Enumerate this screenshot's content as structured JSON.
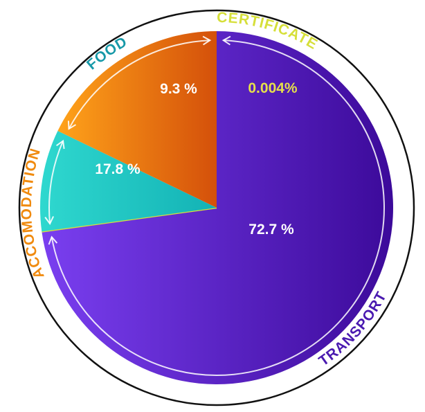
{
  "chart_data": {
    "type": "pie",
    "title": "",
    "slices": [
      {
        "category": "TRANSPORT",
        "value": 72.7,
        "label": "72.7 %",
        "color": "#5b2bd0"
      },
      {
        "category": "CERTIFICATE",
        "value": 0.004,
        "label": "0.004%",
        "color": "#d9e03a"
      },
      {
        "category": "FOOD",
        "value": 9.3,
        "label": "9.3 %",
        "color": "#1fc7c2"
      },
      {
        "category": "ACCOMODATION",
        "value": 17.8,
        "label": "17.8 %",
        "color": "#f08a0e"
      }
    ],
    "label_colors": {
      "TRANSPORT": "#4a1ab0",
      "CERTIFICATE": "#d6df3a",
      "FOOD": "#1799a8",
      "ACCOMODATION": "#f08a0e"
    }
  }
}
